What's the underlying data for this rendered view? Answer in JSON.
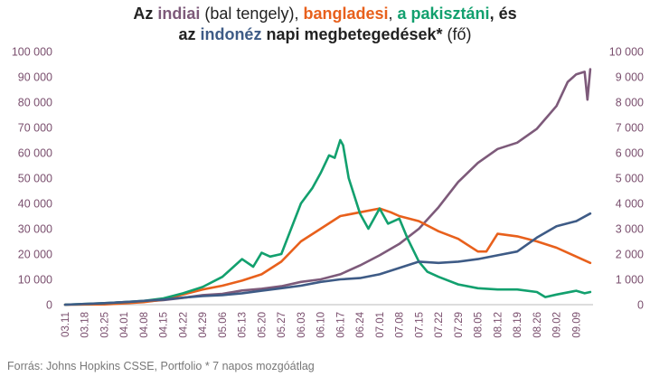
{
  "title": {
    "line1_prefix": "Az ",
    "india": "indiai",
    "line1_mid": " (bal tengely), ",
    "bangladesh": "bangladesi",
    "line1_comma": ", ",
    "pakistan": "a pakisztáni",
    "line1_end": ", és",
    "line2_prefix": "az ",
    "indonesia": "indonéz",
    "line2_mid": " napi megbetegedések*",
    "line2_end": " (fő)"
  },
  "source": "Forrás: Johns Hopkins CSSE, Portfolio   * 7 napos mozgóátlag",
  "chart_data": {
    "type": "line",
    "title": "Az indiai (bal tengely), bangladesi, a pakisztáni, és az indonéz napi megbetegedések* (fő)",
    "x_tick_labels": [
      "03.11",
      "03.18",
      "03.25",
      "04.01",
      "04.08",
      "04.15",
      "04.22",
      "04.29",
      "05.06",
      "05.13",
      "05.20",
      "05.27",
      "06.03",
      "06.10",
      "06.17",
      "06.24",
      "07.01",
      "07.08",
      "07.15",
      "07.22",
      "07.29",
      "08.05",
      "08.12",
      "08.19",
      "08.26",
      "09.02",
      "09.09"
    ],
    "x_range": [
      "03.11",
      "09.15"
    ],
    "left_axis": {
      "min": 0,
      "max": 100000,
      "ticks": [
        "0",
        "10 000",
        "20 000",
        "30 000",
        "40 000",
        "50 000",
        "60 000",
        "70 000",
        "80 000",
        "90 000",
        "100 000"
      ]
    },
    "right_axis": {
      "min": 0,
      "max": 10000,
      "ticks": [
        "0",
        "1 000",
        "2 000",
        "3 000",
        "4 000",
        "5 000",
        "6 000",
        "7 000",
        "8 000",
        "9 000",
        "10 000"
      ]
    },
    "grid": false,
    "legend": "title",
    "series": [
      {
        "name": "indiai",
        "axis": "left",
        "color": "#7d5a7a",
        "x": [
          0,
          7,
          14,
          21,
          28,
          35,
          42,
          49,
          56,
          63,
          70,
          77,
          84,
          91,
          98,
          105,
          112,
          119,
          126,
          133,
          140,
          147,
          154,
          161,
          168,
          175,
          179,
          182,
          185,
          186,
          187
        ],
        "y": [
          0,
          100,
          500,
          1000,
          1300,
          1800,
          2700,
          3800,
          4300,
          5600,
          6300,
          7300,
          9000,
          10000,
          12000,
          15500,
          19500,
          24000,
          30000,
          38500,
          48500,
          56000,
          61500,
          64000,
          69500,
          78500,
          88000,
          91000,
          92000,
          81000,
          93000
        ]
      },
      {
        "name": "bangladesi",
        "axis": "right",
        "color": "#e8601c",
        "x": [
          0,
          14,
          21,
          28,
          35,
          42,
          49,
          56,
          63,
          70,
          77,
          84,
          91,
          98,
          105,
          112,
          116,
          119,
          126,
          133,
          140,
          147,
          150,
          154,
          161,
          168,
          175,
          182,
          187
        ],
        "y": [
          0,
          10,
          50,
          100,
          200,
          400,
          600,
          750,
          950,
          1200,
          1700,
          2500,
          3000,
          3500,
          3650,
          3800,
          3650,
          3500,
          3300,
          2900,
          2600,
          2100,
          2100,
          2800,
          2700,
          2500,
          2250,
          1900,
          1650
        ]
      },
      {
        "name": "a pakisztáni",
        "axis": "right",
        "color": "#12a06e",
        "x": [
          0,
          14,
          21,
          28,
          35,
          42,
          49,
          56,
          58,
          63,
          67,
          70,
          73,
          77,
          84,
          88,
          91,
          94,
          96,
          98,
          99,
          101,
          105,
          108,
          112,
          115,
          119,
          122,
          126,
          129,
          133,
          140,
          147,
          154,
          161,
          168,
          171,
          175,
          182,
          185,
          187
        ],
        "y": [
          0,
          60,
          100,
          150,
          250,
          450,
          700,
          1100,
          1300,
          1800,
          1500,
          2050,
          1900,
          2000,
          4000,
          4600,
          5200,
          5900,
          5800,
          6500,
          6300,
          5000,
          3600,
          3000,
          3800,
          3200,
          3400,
          2600,
          1700,
          1300,
          1100,
          800,
          650,
          600,
          600,
          500,
          300,
          400,
          550,
          450,
          500
        ]
      },
      {
        "name": "indonéz",
        "axis": "right",
        "color": "#3e5b86",
        "x": [
          0,
          14,
          21,
          28,
          35,
          42,
          49,
          56,
          63,
          70,
          77,
          84,
          91,
          98,
          105,
          112,
          119,
          126,
          133,
          140,
          147,
          154,
          161,
          168,
          175,
          182,
          187
        ],
        "y": [
          0,
          60,
          100,
          150,
          200,
          280,
          340,
          380,
          450,
          550,
          650,
          750,
          900,
          1000,
          1050,
          1200,
          1450,
          1700,
          1650,
          1700,
          1800,
          1950,
          2100,
          2650,
          3100,
          3300,
          3600
        ]
      }
    ]
  }
}
